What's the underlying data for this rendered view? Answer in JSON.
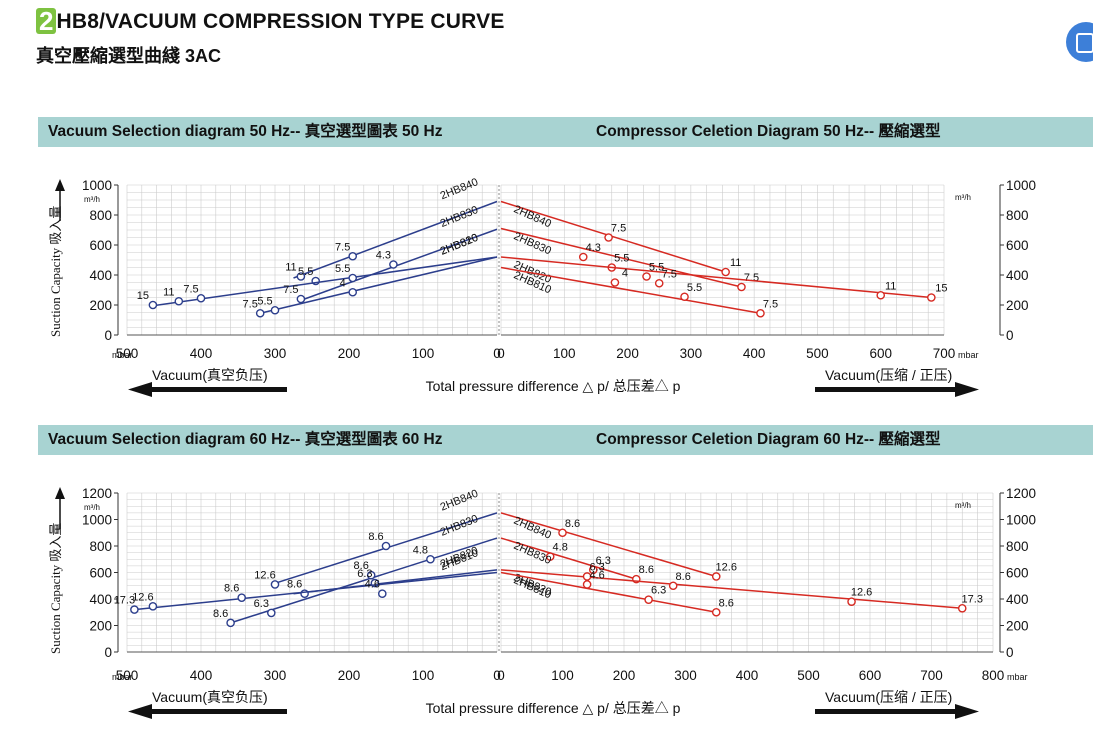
{
  "header": {
    "number": "2",
    "title": "HB8/VACUUM COMPRESSION TYPE CURVE",
    "subtitle": "真空壓縮選型曲綫 3AC"
  },
  "colors": {
    "vacuum": "#2c3e8c",
    "compressor": "#d62a22",
    "band": "#a8d3d2",
    "grid": "#cccccc"
  },
  "common": {
    "ylabel": "Suction Capacity 吸入量",
    "unit": "m³/h",
    "mbar": "mbar",
    "vacuum_label": "Vacuum(真空负压)",
    "compressor_label": "Vacuum(压缩 / 正压)",
    "xlabel": "Total pressure difference △ p/ 总压差△ p"
  },
  "chart_data": [
    {
      "type": "line",
      "title": "Vacuum Selection diagram 50 Hz-- 真空選型圖表 50 Hz",
      "xlim": [
        500,
        0
      ],
      "ylim": [
        0,
        1000
      ],
      "x_ticks": [
        "500",
        "400",
        "300",
        "200",
        "100",
        "0"
      ],
      "y_ticks": [
        "1000",
        "800",
        "600",
        "400",
        "200",
        "0"
      ],
      "series": [
        {
          "name": "2HB840",
          "line": [
            [
              0,
              890
            ],
            [
              275,
              380
            ]
          ],
          "points": [
            [
              265,
              390,
              "11"
            ],
            [
              195,
              525,
              "7.5"
            ]
          ]
        },
        {
          "name": "2HB830",
          "line": [
            [
              0,
              705
            ],
            [
              260,
              240
            ]
          ],
          "points": [
            [
              245,
              360,
              "5.5"
            ],
            [
              140,
              470,
              "4.3"
            ]
          ]
        },
        {
          "name": "2HB820",
          "line": [
            [
              0,
              520
            ],
            [
              465,
              195
            ]
          ],
          "points": [
            [
              465,
              200,
              "15"
            ],
            [
              430,
              225,
              "11"
            ],
            [
              400,
              245,
              "7.5"
            ],
            [
              195,
              380,
              "5.5"
            ]
          ]
        },
        {
          "name": "2HB810",
          "line": [
            [
              0,
              520
            ],
            [
              320,
              145
            ]
          ],
          "points": [
            [
              320,
              145,
              "7.5"
            ],
            [
              300,
              165,
              "5.5"
            ],
            [
              265,
              240,
              "7.5"
            ],
            [
              195,
              285,
              "4"
            ]
          ]
        }
      ]
    },
    {
      "type": "line",
      "title": "Compressor Celetion Diagram 50 Hz-- 壓縮選型",
      "xlim": [
        0,
        700
      ],
      "ylim": [
        0,
        1000
      ],
      "x_ticks": [
        "0",
        "100",
        "200",
        "300",
        "400",
        "500",
        "600",
        "700"
      ],
      "y_ticks": [
        "1000",
        "800",
        "600",
        "400",
        "200",
        "0"
      ],
      "series": [
        {
          "name": "2HB840",
          "line": [
            [
              0,
              890
            ],
            [
              355,
              420
            ]
          ],
          "points": [
            [
              170,
              650,
              "7.5"
            ],
            [
              355,
              420,
              "11"
            ]
          ]
        },
        {
          "name": "2HB830",
          "line": [
            [
              0,
              710
            ],
            [
              380,
              320
            ]
          ],
          "points": [
            [
              130,
              520,
              "4.3"
            ],
            [
              175,
              450,
              "5.5"
            ],
            [
              380,
              320,
              "7.5"
            ]
          ]
        },
        {
          "name": "2HB820",
          "line": [
            [
              0,
              520
            ],
            [
              680,
              250
            ]
          ],
          "points": [
            [
              230,
              390,
              "5.5"
            ],
            [
              600,
              265,
              "11"
            ],
            [
              680,
              250,
              "15"
            ]
          ]
        },
        {
          "name": "2HB810",
          "line": [
            [
              0,
              450
            ],
            [
              410,
              145
            ]
          ],
          "points": [
            [
              180,
              350,
              "4"
            ],
            [
              250,
              345,
              "7.5"
            ],
            [
              290,
              255,
              "5.5"
            ],
            [
              410,
              145,
              "7.5"
            ]
          ]
        }
      ]
    },
    {
      "type": "line",
      "title": "Vacuum Selection diagram 60 Hz-- 真空選型圖表 60 Hz",
      "xlim": [
        500,
        0
      ],
      "ylim": [
        0,
        1200
      ],
      "x_ticks": [
        "500",
        "400",
        "300",
        "200",
        "100",
        "0"
      ],
      "y_ticks": [
        "1200",
        "1000",
        "800",
        "600",
        "400",
        "200",
        "0"
      ],
      "series": [
        {
          "name": "2HB840",
          "line": [
            [
              0,
              1050
            ],
            [
              305,
              510
            ]
          ],
          "points": [
            [
              300,
              510,
              "12.6"
            ],
            [
              150,
              800,
              "8.6"
            ]
          ]
        },
        {
          "name": "2HB830",
          "line": [
            [
              0,
              860
            ],
            [
              360,
              220
            ]
          ],
          "points": [
            [
              360,
              220,
              "8.6"
            ],
            [
              305,
              295,
              "6.3"
            ],
            [
              90,
              700,
              "4.8"
            ]
          ]
        },
        {
          "name": "2HB820",
          "line": [
            [
              0,
              620
            ],
            [
              275,
              440
            ]
          ],
          "points": [
            [
              260,
              440,
              "8.6"
            ],
            [
              170,
              580,
              "8.6"
            ],
            [
              165,
              520,
              "6.3"
            ]
          ]
        },
        {
          "name": "2HB810",
          "line": [
            [
              0,
              600
            ],
            [
              490,
              320
            ]
          ],
          "points": [
            [
              490,
              320,
              "17.3"
            ],
            [
              465,
              345,
              "12.6"
            ],
            [
              345,
              410,
              "8.6"
            ],
            [
              155,
              440,
              "4.6"
            ]
          ]
        }
      ]
    },
    {
      "type": "line",
      "title": "Compressor Celetion Diagram 60 Hz-- 壓縮選型",
      "xlim": [
        0,
        800
      ],
      "ylim": [
        0,
        1200
      ],
      "x_ticks": [
        "0",
        "100",
        "200",
        "300",
        "400",
        "500",
        "600",
        "700",
        "800"
      ],
      "y_ticks": [
        "1200",
        "1000",
        "800",
        "600",
        "400",
        "200",
        "0"
      ],
      "series": [
        {
          "name": "2HB840",
          "line": [
            [
              0,
              1050
            ],
            [
              350,
              570
            ]
          ],
          "points": [
            [
              100,
              900,
              "8.6"
            ],
            [
              350,
              570,
              "12.6"
            ]
          ]
        },
        {
          "name": "2HB830",
          "line": [
            [
              0,
              860
            ],
            [
              220,
              550
            ]
          ],
          "points": [
            [
              80,
              720,
              "4.8"
            ],
            [
              150,
              620,
              "6.3"
            ],
            [
              220,
              550,
              "8.6"
            ]
          ]
        },
        {
          "name": "2HB820",
          "line": [
            [
              0,
              620
            ],
            [
              750,
              330
            ]
          ],
          "points": [
            [
              140,
              570,
              "6.3"
            ],
            [
              280,
              500,
              "8.6"
            ],
            [
              570,
              380,
              "12.6"
            ],
            [
              750,
              330,
              "17.3"
            ]
          ]
        },
        {
          "name": "2HB810",
          "line": [
            [
              0,
              600
            ],
            [
              350,
              300
            ]
          ],
          "points": [
            [
              140,
              510,
              "4.6"
            ],
            [
              240,
              395,
              "6.3"
            ],
            [
              350,
              300,
              "8.6"
            ]
          ]
        }
      ]
    }
  ]
}
